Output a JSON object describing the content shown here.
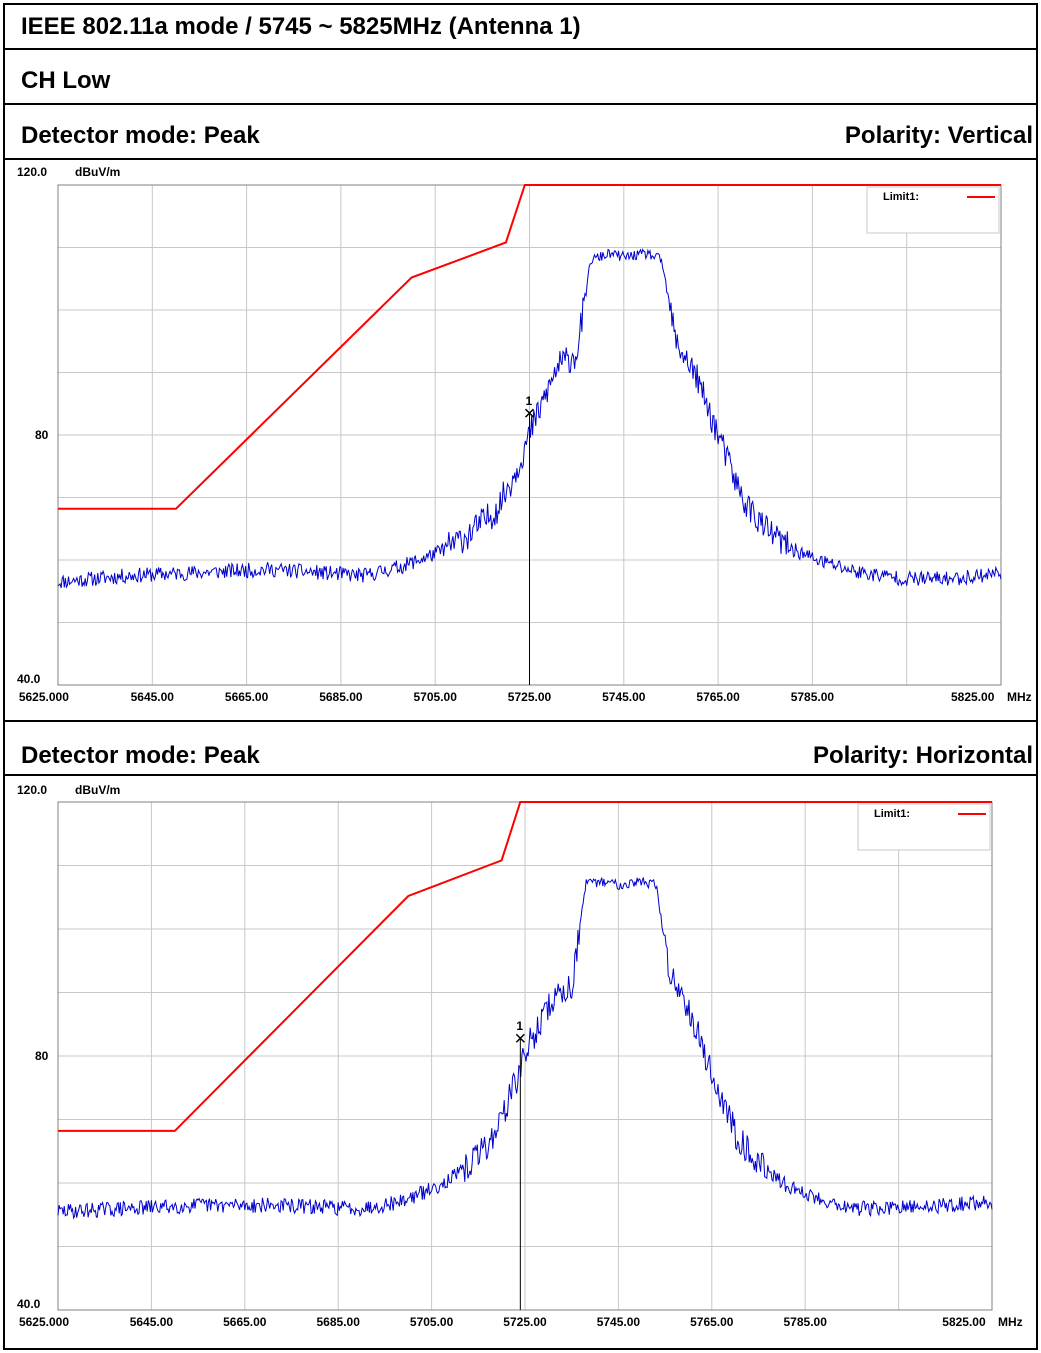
{
  "header": {
    "title": "IEEE 802.11a mode / 5745 ~ 5825MHz  (Antenna  1)",
    "channel": "CH Low"
  },
  "panels": [
    {
      "detector": "Detector mode: Peak",
      "polarity": "Polarity: Vertical"
    },
    {
      "detector": "Detector mode: Peak",
      "polarity": "Polarity: Horizontal"
    }
  ],
  "chart_data": [
    {
      "type": "line",
      "ylabel": "dBuV/m",
      "xunit": "MHz",
      "xlim": [
        5625,
        5825
      ],
      "ylim": [
        40,
        120
      ],
      "x_ticks": [
        "5625.000",
        "5645.00",
        "5665.00",
        "5685.00",
        "5705.00",
        "5725.00",
        "5745.00",
        "5765.00",
        "5785.00",
        "5825.00"
      ],
      "y_ticks": [
        "120.0",
        "80",
        "40.0"
      ],
      "grid": true,
      "legend": {
        "position": "top-right",
        "entries": [
          "Limit1:"
        ]
      },
      "marker": {
        "label": "1",
        "x": 5725.0,
        "y": 83.5
      },
      "series": [
        {
          "name": "Limit1:",
          "color": "#ff0000",
          "x": [
            5625,
            5650,
            5700,
            5720,
            5724,
            5825
          ],
          "y": [
            68.2,
            68.2,
            105.2,
            110.8,
            120,
            120
          ]
        },
        {
          "color": "#0000cc",
          "x": [
            5625,
            5640,
            5655,
            5670,
            5690,
            5698,
            5705,
            5712,
            5718,
            5722,
            5726,
            5731,
            5735,
            5738,
            5742,
            5745,
            5750,
            5753,
            5756,
            5760,
            5765,
            5770,
            5775,
            5780,
            5786,
            5795,
            5805,
            5815,
            5825
          ],
          "y": [
            56.5,
            57.5,
            58,
            58.5,
            57.5,
            59,
            61,
            64,
            68,
            74,
            82,
            91,
            93,
            108,
            109,
            108.5,
            109,
            108,
            95,
            90,
            80,
            70,
            65,
            62,
            60,
            58,
            57,
            57,
            58
          ]
        }
      ]
    },
    {
      "type": "line",
      "ylabel": "dBuV/m",
      "xunit": "MHz",
      "xlim": [
        5625,
        5825
      ],
      "ylim": [
        40,
        120
      ],
      "x_ticks": [
        "5625.000",
        "5645.00",
        "5665.00",
        "5685.00",
        "5705.00",
        "5725.00",
        "5745.00",
        "5765.00",
        "5785.00",
        "5825.00"
      ],
      "y_ticks": [
        "120.0",
        "80",
        "40.0"
      ],
      "grid": true,
      "legend": {
        "position": "top-right",
        "entries": [
          "Limit1:"
        ]
      },
      "marker": {
        "label": "1",
        "x": 5724.0,
        "y": 82.8
      },
      "series": [
        {
          "name": "Limit1:",
          "color": "#ff0000",
          "x": [
            5625,
            5650,
            5700,
            5720,
            5724,
            5825
          ],
          "y": [
            68.2,
            68.2,
            105.2,
            110.8,
            120,
            120
          ]
        },
        {
          "color": "#0000cc",
          "x": [
            5625,
            5640,
            5655,
            5670,
            5690,
            5698,
            5705,
            5712,
            5718,
            5722,
            5726,
            5731,
            5735,
            5738,
            5742,
            5745,
            5750,
            5753,
            5756,
            5760,
            5765,
            5770,
            5775,
            5780,
            5786,
            5795,
            5805,
            5815,
            5825
          ],
          "y": [
            55.5,
            56,
            56.5,
            56.5,
            56,
            57,
            59,
            62,
            67,
            74,
            82,
            89,
            91,
            107,
            107.5,
            107,
            107.5,
            107,
            93,
            88,
            77,
            68,
            63,
            60,
            58,
            56,
            56,
            56.5,
            57
          ]
        }
      ]
    }
  ]
}
